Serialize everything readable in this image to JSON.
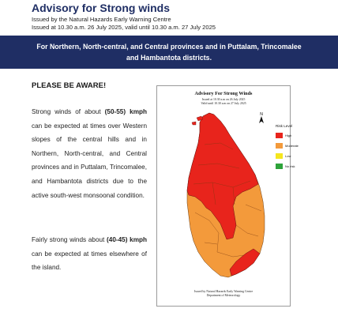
{
  "header": {
    "title": "Advisory for Strong winds",
    "issuer": "Issued by the Natural Hazards Early Warning Centre",
    "issued_valid": "Issued at 10.30 a.m. 26 July 2025, valid until 10.30 a.m. 27 July 2025"
  },
  "banner": {
    "line1": "For Northern, North-central, and Central provinces and in Puttalam, Trincomalee",
    "line2": "and Hambantota districts."
  },
  "body": {
    "heading": "PLEASE BE AWARE!",
    "p1_pre": "Strong winds of about ",
    "p1_speed": "(50-55) kmph",
    "p1_post": " can be expected at times over Western slopes of the central hills and in Northern, North-central, and Central provinces and in Puttalam, Trincomalee, and Hambantota districts due to the active south-west monsoonal condition.",
    "p2_pre": "Fairly strong winds about ",
    "p2_speed": "(40-45) kmph",
    "p2_post": " can be expected at times elsewhere of the island."
  },
  "map": {
    "title": "Advisory For Strong Winds",
    "issued": "Issued at 10.30 a.m on 26 July 2025",
    "valid": "Valid until 10.30 a.m on 27 July 2025",
    "legend_title": "Risk Level",
    "legend": [
      {
        "label": "High",
        "color": "#e8241c"
      },
      {
        "label": "Moderate",
        "color": "#f39a3b"
      },
      {
        "label": "Low",
        "color": "#f5e61e"
      },
      {
        "label": "No risk",
        "color": "#2ea33a"
      }
    ],
    "footer1": "Issued by Natural Hazards Early Warning Centre",
    "footer2": "Department of Meteorology"
  },
  "colors": {
    "high": "#e8241c",
    "moderate": "#f39a3b",
    "banner_bg": "#1f2e64",
    "title": "#1f2e64"
  }
}
